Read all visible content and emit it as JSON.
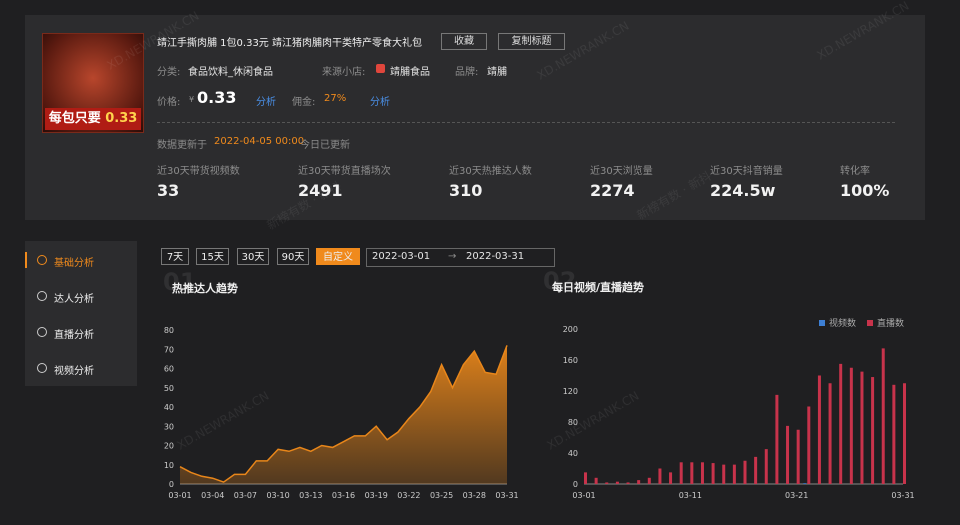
{
  "product": {
    "image_caption": "每包只要",
    "image_price": "0.33",
    "title": "靖江手撕肉脯 1包0.33元 靖江猪肉脯肉干类特产零食大礼包",
    "actions": [
      "收藏",
      "复制标题"
    ],
    "category_label": "分类:",
    "category": "食品饮料_休闲食品",
    "store_label": "来源小店:",
    "store": "靖脯食品",
    "brand_label": "品牌:",
    "brand": "靖脯",
    "price_label": "价格:",
    "currency": "¥",
    "price": "0.33",
    "analyze": "分析",
    "commission_label": "佣金:",
    "commission": "27%"
  },
  "update": {
    "label": "数据更新于",
    "time": "2022-04-05 00:00",
    "status": "今日已更新"
  },
  "stats": [
    {
      "label": "近30天带货视频数",
      "value": 33
    },
    {
      "label": "近30天带货直播场次",
      "value": 2491
    },
    {
      "label": "近30天热推达人数",
      "value": 310
    },
    {
      "label": "近30天浏览量",
      "value": 2274
    },
    {
      "label": "近30天抖音销量",
      "value": "224.5w"
    },
    {
      "label": "转化率",
      "value": "100%"
    }
  ],
  "sidebar": [
    "基础分析",
    "达人分析",
    "直播分析",
    "视频分析"
  ],
  "ranges": [
    "7天",
    "15天",
    "30天",
    "90天",
    "自定义"
  ],
  "date_range": {
    "start": "2022-03-01",
    "separator": "→",
    "end": "2022-03-31"
  },
  "watermarks": [
    "XD.NEWRANK.CN",
    "XD.NEWRANK.CN",
    "XD.NEWRANK.CN",
    "新榜有数 · 新抖",
    "新榜有数 · 新抖",
    "XD.NEWRANK.CN",
    "XD.NEWRANK.CN"
  ],
  "chart_data": [
    {
      "type": "area",
      "index_label": "01",
      "title": "热推达人趋势",
      "categories": [
        "03-01",
        null,
        null,
        "03-04",
        null,
        null,
        "03-07",
        null,
        null,
        "03-10",
        null,
        null,
        "03-13",
        null,
        null,
        "03-16",
        null,
        null,
        "03-19",
        null,
        null,
        "03-22",
        null,
        null,
        "03-25",
        null,
        null,
        "03-28",
        null,
        null,
        "03-31"
      ],
      "values": [
        9,
        6,
        4,
        3,
        1,
        5,
        5,
        12,
        12,
        18,
        17,
        19,
        17,
        20,
        19,
        22,
        25,
        25,
        30,
        23,
        27,
        34,
        40,
        48,
        62,
        50,
        62,
        69,
        58,
        57,
        72
      ],
      "color": "#e8861a",
      "ylim": [
        0,
        80
      ],
      "yticks": [
        0,
        10,
        20,
        30,
        40,
        50,
        60,
        70,
        80
      ],
      "grid": false
    },
    {
      "type": "bar",
      "index_label": "02",
      "title": "每日视频/直播趋势",
      "categories": [
        "03-01",
        null,
        null,
        null,
        null,
        null,
        null,
        null,
        null,
        null,
        "03-11",
        null,
        null,
        null,
        null,
        null,
        null,
        null,
        null,
        null,
        "03-21",
        null,
        null,
        null,
        null,
        null,
        null,
        null,
        null,
        null,
        "03-31"
      ],
      "series": [
        {
          "name": "视频数",
          "color": "#3d7fd4",
          "values": [
            0,
            0,
            0,
            0,
            0,
            0,
            0,
            0,
            0,
            0,
            0,
            0,
            0,
            0,
            0,
            0,
            0,
            0,
            0,
            0,
            0,
            1,
            0,
            0,
            0,
            0,
            0,
            0,
            0,
            0,
            0
          ]
        },
        {
          "name": "直播数",
          "color": "#c8334b",
          "values": [
            15,
            8,
            2,
            3,
            2,
            5,
            8,
            20,
            15,
            28,
            28,
            28,
            27,
            25,
            25,
            30,
            35,
            45,
            115,
            75,
            70,
            100,
            140,
            130,
            155,
            150,
            145,
            138,
            175,
            128,
            130
          ]
        }
      ],
      "ylim": [
        0,
        200
      ],
      "yticks": [
        0,
        40,
        80,
        120,
        160,
        200
      ],
      "grid": false,
      "legend": "top-right"
    }
  ]
}
